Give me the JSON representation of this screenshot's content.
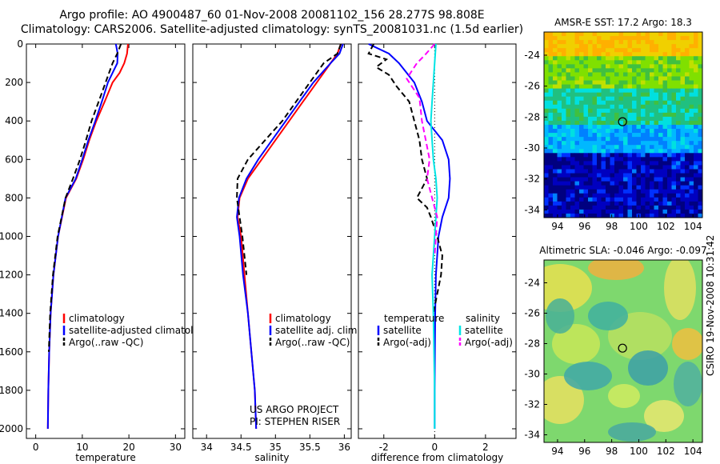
{
  "header": {
    "line1": "Argo profile: AO 4900487_60 01-Nov-2008 20081102_156 28.277S 98.808E",
    "line2": "Climatology: CARS2006. Satellite-adjusted climatology: synTS_20081031.nc (1.5d earlier)"
  },
  "side_label": "CSIRO 19-Nov-2008 10:31:42",
  "colors": {
    "red": "#ff0000",
    "blue": "#0000ff",
    "black": "#000000",
    "cyan": "#00e5e5",
    "magenta": "#ff00ff"
  },
  "chart_data": [
    {
      "type": "line",
      "id": "temperature",
      "xlabel": "temperature",
      "xlim": [
        -2,
        32
      ],
      "ylim": [
        2050,
        0
      ],
      "xticks": [
        0,
        10,
        20,
        30
      ],
      "yticks": [
        0,
        200,
        400,
        600,
        800,
        1000,
        1200,
        1400,
        1600,
        1800,
        2000
      ],
      "legend": [
        "climatology",
        "satellite-adjusted climatology",
        "Argo(..raw -QC)"
      ],
      "series": [
        {
          "name": "climatology",
          "color": "red",
          "dash": false,
          "x": [
            19.8,
            19.6,
            19.0,
            18.0,
            16.5,
            14.8,
            13.0,
            11.5,
            10.2,
            8.7,
            6.5,
            4.8,
            3.8,
            3.2,
            2.9,
            2.7,
            2.6
          ],
          "y": [
            0,
            50,
            100,
            150,
            200,
            300,
            400,
            500,
            600,
            700,
            800,
            1000,
            1200,
            1400,
            1600,
            1800,
            2000
          ]
        },
        {
          "name": "satellite-adjusted climatology",
          "color": "blue",
          "dash": false,
          "x": [
            17.2,
            17.6,
            17.5,
            16.5,
            15.5,
            14.2,
            12.8,
            11.3,
            10.0,
            8.6,
            6.4,
            4.8,
            3.8,
            3.2,
            2.9,
            2.7,
            2.6
          ],
          "y": [
            0,
            50,
            100,
            150,
            200,
            300,
            400,
            500,
            600,
            700,
            800,
            1000,
            1200,
            1400,
            1600,
            1800,
            2000
          ]
        },
        {
          "name": "Argo(..raw -QC)",
          "color": "black",
          "dash": true,
          "x": [
            18.3,
            17.5,
            16.5,
            15.0,
            13.5,
            12.0,
            10.8,
            9.5,
            8.0,
            6.4,
            4.7,
            3.7,
            3.1,
            2.8
          ],
          "y": [
            0,
            50,
            100,
            200,
            300,
            400,
            500,
            600,
            700,
            800,
            1000,
            1200,
            1400,
            1600
          ]
        }
      ]
    },
    {
      "type": "line",
      "id": "salinity",
      "xlabel": "salinity",
      "xlim": [
        33.8,
        36.1
      ],
      "ylim": [
        2050,
        0
      ],
      "xticks": [
        34,
        34.5,
        35,
        35.5,
        36
      ],
      "legend": [
        "climatology",
        "satellite adj. clim.",
        "Argo(..raw -QC)"
      ],
      "annotation": [
        "US ARGO PROJECT",
        "PI: STEPHEN RISER"
      ],
      "series": [
        {
          "name": "climatology",
          "color": "red",
          "dash": false,
          "x": [
            35.95,
            35.9,
            35.8,
            35.6,
            35.4,
            35.2,
            35.0,
            34.8,
            34.6,
            34.48,
            34.45,
            34.5,
            34.55,
            34.6,
            34.65,
            34.7,
            34.72
          ],
          "y": [
            0,
            50,
            100,
            200,
            300,
            400,
            500,
            600,
            700,
            800,
            900,
            1000,
            1200,
            1400,
            1600,
            1800,
            2000
          ]
        },
        {
          "name": "satellite adj. clim.",
          "color": "blue",
          "dash": false,
          "x": [
            35.98,
            35.93,
            35.8,
            35.55,
            35.35,
            35.15,
            34.95,
            34.75,
            34.58,
            34.47,
            34.44,
            34.48,
            34.53,
            34.6,
            34.65,
            34.7,
            34.72
          ],
          "y": [
            0,
            50,
            100,
            200,
            300,
            400,
            500,
            600,
            700,
            800,
            900,
            1000,
            1200,
            1400,
            1600,
            1800,
            2000
          ]
        },
        {
          "name": "Argo(..raw -QC)",
          "color": "black",
          "dash": true,
          "x": [
            35.95,
            35.9,
            35.7,
            35.5,
            35.3,
            35.1,
            34.85,
            34.6,
            34.45,
            34.44,
            34.48,
            34.52,
            34.58
          ],
          "y": [
            0,
            50,
            100,
            200,
            300,
            400,
            500,
            600,
            700,
            800,
            900,
            1000,
            1200
          ]
        }
      ]
    },
    {
      "type": "line",
      "id": "difference",
      "xlabel": "difference from climatology",
      "xlim": [
        -3,
        3.2
      ],
      "ylim": [
        2050,
        0
      ],
      "xticks": [
        -2,
        0,
        2
      ],
      "legend_left": {
        "title": "temperature",
        "items": [
          "satellite",
          "Argo(-adj)"
        ]
      },
      "legend_right": {
        "title": "salinity",
        "items": [
          "satellite",
          "Argo(-adj)"
        ]
      },
      "series": [
        {
          "name": "satellite",
          "group": "temperature",
          "color": "blue",
          "dash": false,
          "x": [
            -2.6,
            -1.8,
            -1.4,
            -1.1,
            -0.8,
            -0.5,
            -0.3,
            0.3,
            0.55,
            0.6,
            0.55,
            0.3,
            0.15,
            0.05,
            0.02,
            0.0,
            0.0
          ],
          "y": [
            0,
            50,
            100,
            150,
            200,
            300,
            400,
            500,
            600,
            700,
            800,
            900,
            1000,
            1200,
            1400,
            1800,
            2000
          ]
        },
        {
          "name": "Argo(-adj)",
          "group": "temperature",
          "color": "black",
          "dash": true,
          "x": [
            -2.4,
            -2.6,
            -1.9,
            -2.3,
            -1.8,
            -1.5,
            -1.0,
            -0.8,
            -0.6,
            -0.5,
            -0.3,
            -0.7,
            -0.3,
            -0.15,
            0.1,
            0.3,
            0.25,
            0.1,
            -0.05
          ],
          "y": [
            0,
            50,
            80,
            120,
            160,
            220,
            300,
            400,
            500,
            600,
            700,
            800,
            850,
            900,
            1000,
            1100,
            1200,
            1300,
            1400
          ]
        },
        {
          "name": "satellite",
          "group": "salinity",
          "color": "cyan",
          "dash": false,
          "x": [
            0.05,
            0.0,
            -0.05,
            -0.1,
            -0.15,
            -0.1,
            -0.05,
            0.05,
            0.1,
            0.05,
            0.0,
            -0.05,
            -0.1,
            -0.05,
            0.0,
            0.0
          ],
          "y": [
            0,
            100,
            200,
            300,
            400,
            500,
            600,
            700,
            800,
            900,
            1000,
            1100,
            1200,
            1400,
            1800,
            2000
          ]
        },
        {
          "name": "Argo(-adj)",
          "group": "salinity",
          "color": "magenta",
          "dash": true,
          "x": [
            0.0,
            -0.4,
            -0.7,
            -1.1,
            -0.6,
            -0.5,
            -0.35,
            -0.2,
            -0.3,
            -0.1,
            0.1,
            0.05,
            0.0
          ],
          "y": [
            0,
            60,
            100,
            180,
            280,
            400,
            500,
            600,
            700,
            800,
            900,
            1000,
            1100
          ]
        }
      ]
    },
    {
      "type": "heatmap",
      "id": "sst",
      "title": "AMSR-E SST: 17.2 Argo: 18.3",
      "xlim": [
        93,
        104.7
      ],
      "ylim": [
        -34.5,
        -22.5
      ],
      "xticks": [
        94,
        96,
        98,
        100,
        102,
        104
      ],
      "yticks": [
        -24,
        -26,
        -28,
        -30,
        -32,
        -34
      ],
      "marker": {
        "lon": 98.8,
        "lat": -28.3
      }
    },
    {
      "type": "heatmap",
      "id": "sla",
      "title": "Altimetric SLA: -0.046 Argo: -0.097",
      "xlim": [
        93,
        104.7
      ],
      "ylim": [
        -34.5,
        -22.5
      ],
      "xticks": [
        94,
        96,
        98,
        100,
        102,
        104
      ],
      "yticks": [
        -24,
        -26,
        -28,
        -30,
        -32,
        -34
      ],
      "marker": {
        "lon": 98.8,
        "lat": -28.3
      }
    }
  ]
}
